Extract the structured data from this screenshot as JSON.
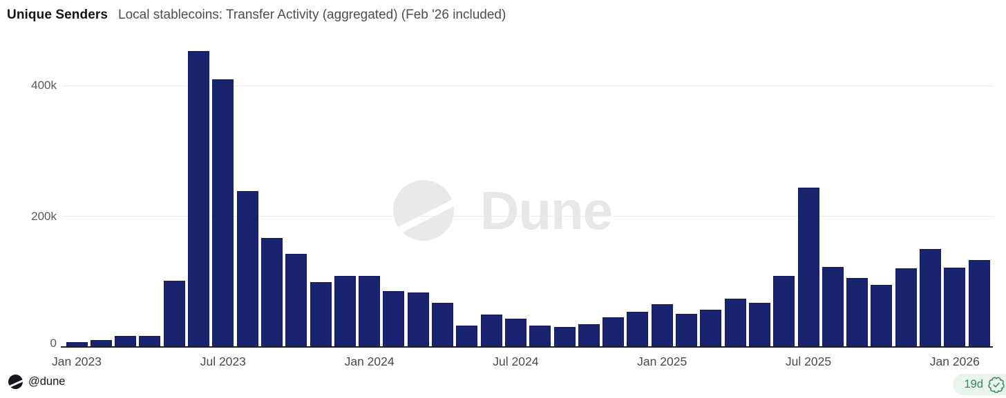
{
  "header": {
    "title": "Unique Senders",
    "subtitle": "Local stablecoins: Transfer Activity (aggregated) (Feb '26 included)"
  },
  "chart_data": {
    "type": "bar",
    "title": "Unique Senders",
    "xlabel": "",
    "ylabel": "Unique Senders",
    "categories": [
      "Jan 2023",
      "Feb 2023",
      "Mar 2023",
      "Apr 2023",
      "May 2023",
      "Jun 2023",
      "Jul 2023",
      "Aug 2023",
      "Sep 2023",
      "Oct 2023",
      "Nov 2023",
      "Dec 2023",
      "Jan 2024",
      "Feb 2024",
      "Mar 2024",
      "Apr 2024",
      "May 2024",
      "Jun 2024",
      "Jul 2024",
      "Aug 2024",
      "Sep 2024",
      "Oct 2024",
      "Nov 2024",
      "Dec 2024",
      "Jan 2025",
      "Feb 2025",
      "Mar 2025",
      "Apr 2025",
      "May 2025",
      "Jun 2025",
      "Jul 2025",
      "Aug 2025",
      "Sep 2025",
      "Oct 2025",
      "Nov 2025",
      "Dec 2025",
      "Jan 2026",
      "Feb 2026"
    ],
    "values": [
      6000,
      9000,
      16000,
      16000,
      100000,
      452000,
      408000,
      238000,
      166000,
      141000,
      98000,
      108000,
      108000,
      84000,
      82000,
      66000,
      32000,
      49000,
      42000,
      32000,
      30000,
      34000,
      44000,
      53000,
      64000,
      50000,
      56000,
      73000,
      67000,
      108000,
      243000,
      121000,
      105000,
      94000,
      119000,
      149000,
      120000,
      132000
    ],
    "ylim": [
      0,
      460000
    ],
    "y_ticks": [
      {
        "label": "0",
        "value": 0
      },
      {
        "label": "200k",
        "value": 200000
      },
      {
        "label": "400k",
        "value": 400000
      }
    ],
    "x_tick_indices": [
      0,
      6,
      12,
      18,
      24,
      30,
      36
    ],
    "grid": true,
    "legend": false,
    "bar_color": "#1a236f"
  },
  "watermark": {
    "text": "Dune",
    "logo": "dune-logo-circle-slash"
  },
  "footer": {
    "handle": "@dune",
    "badge_label": "19d",
    "badge_icon": "verified-seal-check"
  },
  "colors": {
    "bar": "#1a236f",
    "gridline": "#eaeaea",
    "axis_line": "#1f2024",
    "axis_text": "#4a4a4a",
    "title_text": "#141414",
    "subtitle_text": "#4d4d4d",
    "badge_bg": "#e8f4ec",
    "badge_text": "#2e8a56",
    "watermark": "#e7e7e7"
  }
}
